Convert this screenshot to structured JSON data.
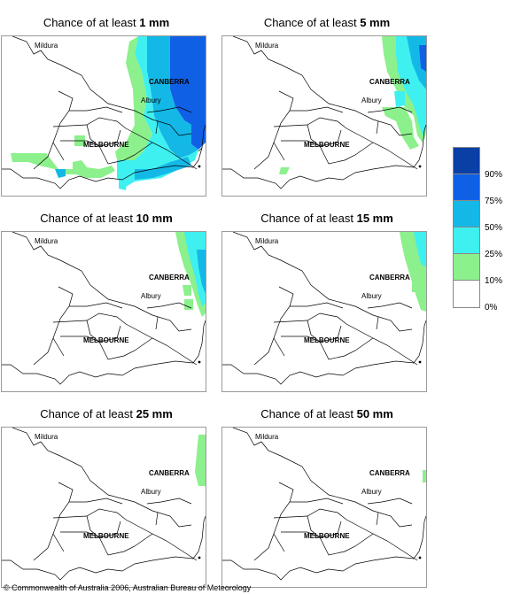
{
  "panels": [
    {
      "prefix": "Chance of at least ",
      "amount": "1 mm"
    },
    {
      "prefix": "Chance of at least ",
      "amount": "5 mm"
    },
    {
      "prefix": "Chance of at least ",
      "amount": "10 mm"
    },
    {
      "prefix": "Chance of at least ",
      "amount": "15 mm"
    },
    {
      "prefix": "Chance of at least ",
      "amount": "25 mm"
    },
    {
      "prefix": "Chance of at least ",
      "amount": "50 mm"
    }
  ],
  "cities": {
    "mildura": "Mildura",
    "canberra": "CANBERRA",
    "albury": "Albury",
    "melbourne": "MELBOURNE"
  },
  "legend": {
    "labels": [
      "90%",
      "75%",
      "50%",
      "25%",
      "10%",
      "0%"
    ],
    "colors": [
      "#0a3fa6",
      "#1060e6",
      "#14b8e6",
      "#3ff0f0",
      "#8cf08c",
      "#ffffff"
    ]
  },
  "copyright": "© Commonwealth of Australia 2006, Australian Bureau of Meteorology"
}
